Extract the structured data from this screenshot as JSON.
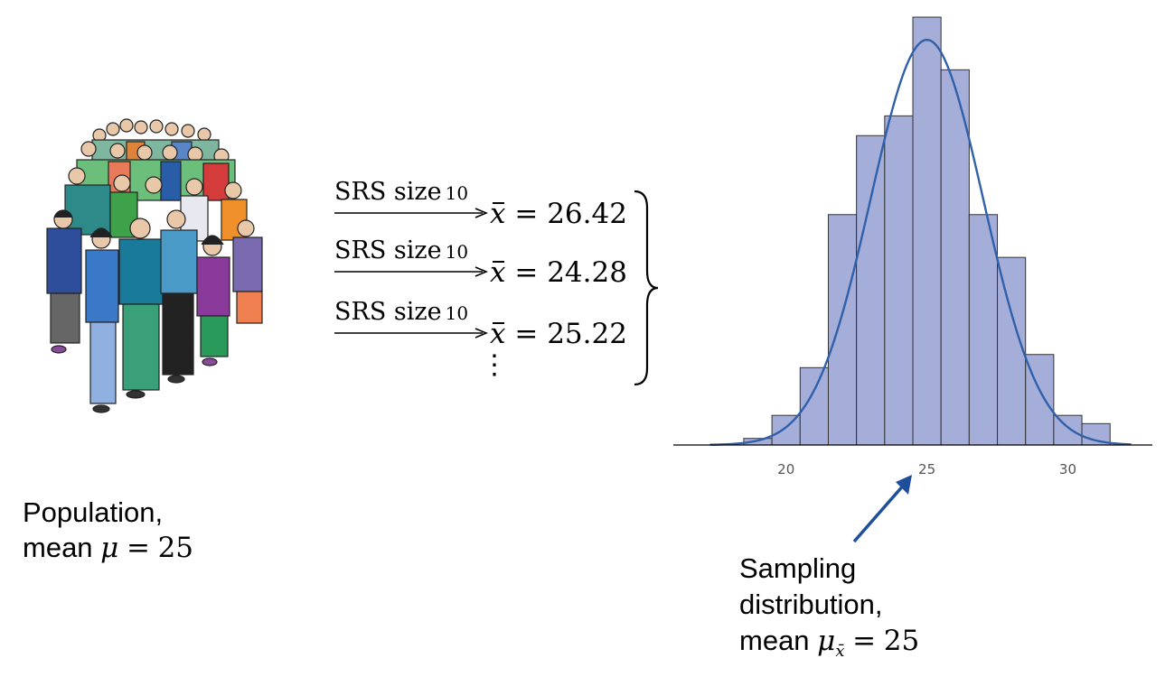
{
  "population": {
    "line1": "Population,",
    "mean_prefix": "mean",
    "symbol": "μ",
    "equals": "=",
    "value": "25"
  },
  "samples": [
    {
      "label": "SRS size",
      "n": "10",
      "xbar_symbol": "x",
      "equals": "=",
      "mean": "26.42"
    },
    {
      "label": "SRS size",
      "n": "10",
      "xbar_symbol": "x",
      "equals": "=",
      "mean": "24.28"
    },
    {
      "label": "SRS size",
      "n": "10",
      "xbar_symbol": "x",
      "equals": "=",
      "mean": "25.22"
    }
  ],
  "ellipsis": "⋮",
  "sampling": {
    "line1": "Sampling",
    "line2": "distribution,",
    "mean_prefix": "mean",
    "symbol": "μ",
    "subscript": "x̄",
    "equals": "=",
    "value": "25"
  },
  "chart_data": {
    "type": "bar",
    "xlim": [
      16,
      33
    ],
    "ylim": [
      0,
      0.23
    ],
    "bin_width": 1,
    "bins": [
      18.5,
      19.5,
      20.5,
      21.5,
      22.5,
      23.5,
      24.5,
      25.5,
      26.5,
      27.5,
      28.5,
      29.5,
      30.5
    ],
    "heights": [
      0.004,
      0.018,
      0.047,
      0.14,
      0.188,
      0.2,
      0.26,
      0.228,
      0.14,
      0.114,
      0.055,
      0.018,
      0.013
    ],
    "x_ticks": [
      "20",
      "25",
      "30"
    ],
    "x_tick_values": [
      20,
      25,
      30
    ],
    "normal_curve": {
      "mean": 25,
      "sd": 2.0,
      "peak": 0.26
    },
    "bar_fill": "#a4aed8",
    "bar_stroke": "#333333",
    "curve_color": "#3060aa"
  },
  "colors": {
    "arrow_blue": "#1f4e9c"
  },
  "icons": {
    "crowd": "crowd-of-people-illustration"
  }
}
